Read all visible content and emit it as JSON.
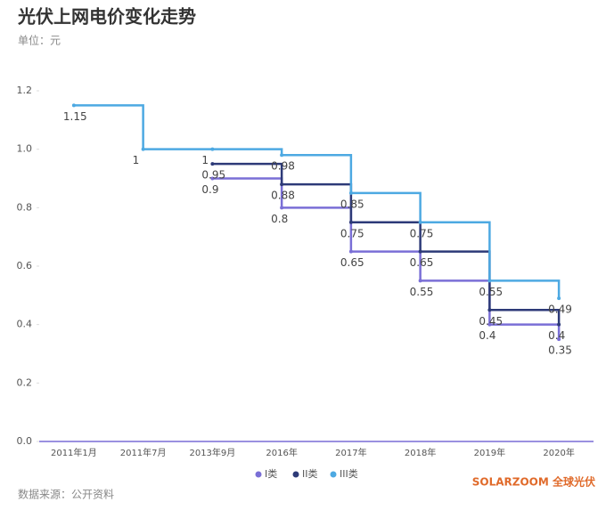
{
  "chart_data": {
    "type": "step-line",
    "title": "光伏上网电价变化走势",
    "subtitle": "单位：元",
    "source": "数据来源：公开资料",
    "watermark": "SOLARZOOM 全球光伏",
    "categories": [
      "2011年1月",
      "2011年7月",
      "2013年9月",
      "2016年",
      "2017年",
      "2018年",
      "2019年",
      "2020年"
    ],
    "series": [
      {
        "name": "I类",
        "color": "#7a6fd6",
        "values": [
          null,
          null,
          0.9,
          0.8,
          0.65,
          0.55,
          0.4,
          0.35
        ]
      },
      {
        "name": "II类",
        "color": "#2d3a78",
        "values": [
          null,
          null,
          0.95,
          0.88,
          0.75,
          0.65,
          0.45,
          0.4
        ]
      },
      {
        "name": "III类",
        "color": "#4da9e2",
        "values": [
          1.15,
          1,
          1,
          0.98,
          0.85,
          0.75,
          0.55,
          0.49
        ]
      }
    ],
    "ylim": [
      0,
      1.2
    ],
    "yticks": [
      {
        "value": 0,
        "label": "0.0"
      },
      0.2,
      0.4,
      0.6,
      0.8,
      {
        "value": 1,
        "label": "1.0"
      },
      1.2
    ],
    "legend": "bottom"
  }
}
